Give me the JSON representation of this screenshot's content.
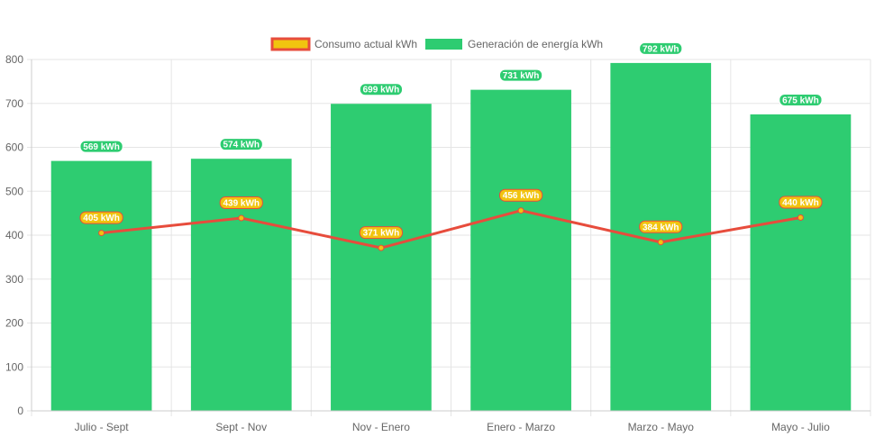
{
  "chart_data": {
    "type": "bar",
    "categories": [
      "Julio - Sept",
      "Sept - Nov",
      "Nov - Enero",
      "Enero - Marzo",
      "Marzo - Mayo",
      "Mayo - Julio"
    ],
    "series": [
      {
        "name": "Consumo actual kWh",
        "type": "line",
        "values": [
          405,
          439,
          371,
          456,
          384,
          440
        ],
        "labels": [
          "405 kWh",
          "439 kWh",
          "371 kWh",
          "456 kWh",
          "384 kWh",
          "440 kWh"
        ],
        "line_color": "#e74c3c",
        "fill_color": "#f1c40f"
      },
      {
        "name": "Generación de energía kWh",
        "type": "bar",
        "values": [
          569,
          574,
          699,
          731,
          792,
          675
        ],
        "labels": [
          "569 kWh",
          "574 kWh",
          "699 kWh",
          "731 kWh",
          "792 kWh",
          "675 kWh"
        ],
        "color": "#2ecc71"
      }
    ],
    "yticks": [
      "0",
      "100",
      "200",
      "300",
      "400",
      "500",
      "600",
      "700",
      "800"
    ],
    "ylim": [
      0,
      800
    ],
    "grid": true,
    "legend_position": "top"
  }
}
